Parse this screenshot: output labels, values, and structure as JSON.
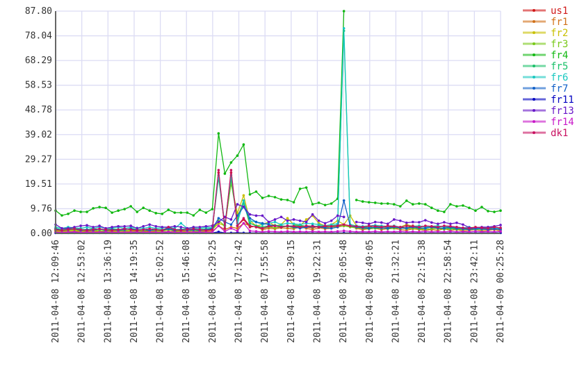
{
  "chart_data": {
    "type": "line",
    "title": "",
    "xlabel": "",
    "ylabel": "",
    "ylim": [
      0,
      87.8
    ],
    "grid": true,
    "legend_placement": "right",
    "y_tick_labels": [
      "0.00",
      "9.76",
      "19.51",
      "29.27",
      "39.02",
      "48.78",
      "58.53",
      "68.29",
      "78.04",
      "87.80"
    ],
    "x_tick_labels": [
      "2011-04-08 12:09:46",
      "2011-04-08 12:53:02",
      "2011-04-08 13:36:19",
      "2011-04-08 14:19:35",
      "2011-04-08 15:02:52",
      "2011-04-08 15:46:08",
      "2011-04-08 16:29:25",
      "2011-04-08 17:12:42",
      "2011-04-08 17:55:58",
      "2011-04-08 18:39:15",
      "2011-04-08 19:22:31",
      "2011-04-08 20:05:48",
      "2011-04-08 20:49:05",
      "2011-04-08 21:32:21",
      "2011-04-08 22:15:38",
      "2011-04-08 22:58:54",
      "2011-04-08 23:42:11",
      "2011-04-09 00:25:28"
    ],
    "series": [
      {
        "name": "us1",
        "color": "#d01818",
        "values": [
          1.2,
          0.8,
          1,
          1.5,
          1,
          0.8,
          1.2,
          1,
          0.8,
          1.2,
          1,
          0.9,
          1.3,
          1,
          0.8,
          1.1,
          1,
          0.9,
          1.5,
          0.8,
          1,
          1.2,
          0.9,
          1,
          1.1,
          1.3,
          24,
          2,
          24,
          3,
          5.5,
          2.5,
          2.8,
          2,
          2.5,
          3,
          2.6,
          2.8,
          2.4,
          3,
          2.5,
          2.2,
          2.8,
          2.5,
          3,
          3.2,
          3.5,
          3,
          2.8,
          2.2,
          2.5,
          3,
          2.6,
          2.5,
          2.8,
          2.4,
          2.2,
          3,
          2.5,
          2.8,
          2.2,
          2.5,
          2.8,
          2.2,
          2.5,
          1.8,
          2,
          2.2,
          1.8,
          2,
          2.2,
          1.8
        ]
      },
      {
        "name": "fr1",
        "color": "#d07018",
        "values": [
          0.8,
          0.5,
          0.6,
          0.8,
          0.6,
          0.5,
          0.7,
          0.6,
          0.5,
          0.7,
          0.6,
          0.5,
          0.8,
          0.6,
          0.5,
          0.7,
          0.6,
          0.5,
          0.8,
          0.5,
          0.6,
          0.7,
          0.5,
          0.6,
          0.7,
          0.8,
          3,
          1.5,
          2.5,
          2,
          4,
          3,
          2.5,
          1.5,
          2,
          1.8,
          2.2,
          2,
          1.8,
          2.5,
          2,
          1.5,
          2.2,
          1.8,
          2,
          2.5,
          3,
          2.8,
          2,
          1.5,
          1.8,
          2,
          1.5,
          1.8,
          2,
          1.5,
          1.2,
          1.8,
          1.5,
          1.2,
          1.5,
          1.2,
          1.8,
          1.2,
          1.5,
          1,
          1.2,
          1.5,
          1,
          1.2,
          1.5,
          1
        ]
      },
      {
        "name": "fr2",
        "color": "#c8c000",
        "values": [
          1,
          0.8,
          1,
          1.2,
          0.8,
          1,
          1.2,
          0.8,
          1,
          1,
          0.8,
          1.2,
          1,
          0.8,
          1,
          1.2,
          1,
          0.8,
          1.5,
          1,
          0.8,
          1.2,
          1,
          0.8,
          1.2,
          1.5,
          4,
          3,
          20,
          8,
          15,
          5,
          3,
          3.5,
          4.5,
          3,
          3.5,
          6,
          3.5,
          3,
          5.5,
          7,
          4,
          3,
          3.5,
          5,
          3.5,
          7,
          3,
          2.5,
          3,
          2.8,
          2.5,
          3,
          2.8,
          2.5,
          3.5,
          2.8,
          3,
          2.5,
          2.8,
          3,
          2.5,
          2.2,
          2.5,
          2,
          2.2,
          2.5,
          2,
          2.2,
          2.5,
          2
        ]
      },
      {
        "name": "fr3",
        "color": "#78c818",
        "values": [
          1.5,
          1,
          1.2,
          1.5,
          1.2,
          1,
          1.3,
          1.1,
          1,
          1.2,
          1.1,
          1,
          1.4,
          1.2,
          1,
          1.3,
          1.1,
          1,
          1.5,
          1,
          1.1,
          1.3,
          1,
          1.1,
          1.2,
          1.5,
          5,
          3,
          20,
          6,
          13,
          3,
          2.5,
          2,
          2.5,
          2.2,
          2.5,
          2.8,
          2.2,
          2.5,
          2.8,
          3,
          2.5,
          2.2,
          2.5,
          2.8,
          3,
          2.5,
          2.2,
          2,
          1.8,
          2,
          2.2,
          1.8,
          2,
          2.2,
          1.8,
          2,
          1.8,
          1.6,
          1.8,
          2,
          1.6,
          1.8,
          1.6,
          1.5,
          1.6,
          1.8,
          1.5,
          1.6,
          1.8,
          1.5
        ]
      },
      {
        "name": "fr4",
        "color": "#10b810",
        "values": [
          9,
          7.1,
          7.7,
          9,
          8.5,
          8.5,
          9.9,
          10.4,
          10.1,
          8.2,
          9,
          9.6,
          10.7,
          8.5,
          10.1,
          9,
          8,
          7.7,
          9.3,
          8.2,
          8.2,
          8.2,
          7.1,
          9.3,
          8.2,
          9.6,
          39.5,
          23.6,
          28,
          30.7,
          35.1,
          15.4,
          16.5,
          14,
          14.8,
          14.3,
          13.4,
          13.2,
          12.3,
          17.6,
          18.1,
          11.5,
          12.1,
          11.2,
          11.8,
          13.7,
          87.8,
          null,
          13.2,
          12.6,
          12.3,
          12.1,
          11.8,
          11.8,
          11.5,
          10.7,
          12.9,
          11.5,
          11.8,
          11.5,
          10.1,
          9,
          8.5,
          11.5,
          10.7,
          11,
          10.1,
          9,
          10.4,
          8.8,
          8.5,
          9
        ]
      },
      {
        "name": "fr5",
        "color": "#18c068",
        "values": [
          2,
          1.5,
          1.8,
          2,
          1.6,
          1.5,
          1.8,
          1.6,
          1.5,
          1.8,
          1.6,
          1.5,
          2,
          1.6,
          1.5,
          1.8,
          1.6,
          1.5,
          2,
          1.5,
          1.6,
          1.8,
          1.5,
          1.6,
          1.8,
          2,
          22,
          3,
          22,
          5,
          12,
          4,
          3,
          2.5,
          3,
          3.2,
          3,
          2.8,
          3,
          3.2,
          2.8,
          2.5,
          3,
          2.8,
          3,
          3.2,
          80,
          3,
          2.5,
          2.2,
          2.5,
          2.2,
          2,
          2.2,
          2.5,
          2,
          2.2,
          2.5,
          2,
          2.2,
          2.5,
          2,
          2.2,
          2,
          1.8,
          2,
          1.8,
          1.6,
          1.8,
          2,
          1.8,
          1.6
        ]
      },
      {
        "name": "fr6",
        "color": "#18c8c0",
        "values": [
          2.5,
          2,
          2.5,
          2.2,
          2,
          2.5,
          2,
          2.5,
          2,
          2.2,
          2.5,
          2,
          2.5,
          2.2,
          2,
          2.5,
          2,
          2.2,
          2.5,
          2,
          4,
          2,
          2.2,
          2,
          2.5,
          2.2,
          23,
          3.5,
          23,
          4,
          13,
          5,
          4.5,
          3.5,
          4,
          4.5,
          3.5,
          4,
          3.8,
          3.5,
          4,
          3.8,
          3.5,
          3,
          3.5,
          3.8,
          81,
          3.5,
          3,
          2.8,
          3,
          3.2,
          3,
          2.8,
          3,
          2.5,
          3,
          2.8,
          3,
          2.5,
          2.8,
          3,
          2.5,
          2.8,
          2.5,
          2.2,
          2.5,
          2,
          2.2,
          2.5,
          2,
          2.2
        ]
      },
      {
        "name": "fr7",
        "color": "#1060c8",
        "values": [
          1.8,
          1.2,
          1.5,
          1.8,
          1.2,
          1.5,
          1.2,
          1.8,
          1.2,
          1.5,
          1.2,
          1.5,
          1.8,
          1.2,
          1.5,
          1.2,
          1.5,
          1.2,
          1.8,
          1.2,
          1.5,
          1.2,
          1.5,
          1.2,
          1.5,
          1.8,
          6,
          4.5,
          3.5,
          7,
          10.5,
          6,
          4.5,
          4,
          3.5,
          3,
          2.5,
          3,
          2.5,
          2,
          2.5,
          3,
          2.5,
          2.2,
          2,
          2.5,
          13,
          3,
          2.5,
          2.2,
          2,
          2.5,
          2.2,
          2,
          2.5,
          2.2,
          2,
          2.5,
          2.2,
          2,
          2.5,
          2.2,
          2,
          2.5,
          2,
          1.8,
          1.5,
          2,
          1.8,
          1.5,
          1.8,
          1.5
        ]
      },
      {
        "name": "fr11",
        "color": "#0000c0",
        "values": [
          0.2,
          0.2,
          0.2,
          0.2,
          0.2,
          0.2,
          0.2,
          0.2,
          0.2,
          0.2,
          0.2,
          0.2,
          0.2,
          0.2,
          0.2,
          0.2,
          0.2,
          0.2,
          0.2,
          0.2,
          0.2,
          0.2,
          0.2,
          0.2,
          0.2,
          0.2,
          0.6,
          0.2,
          0.2,
          0.3,
          0.2,
          0.2,
          0.2,
          0.2,
          0.2,
          0.2,
          0.2,
          0.2,
          0.2,
          0.2,
          0.2,
          0.2,
          0.2,
          0.2,
          0.2,
          0.2,
          0.2,
          0.2,
          0.2,
          0.2,
          0.2,
          0.2,
          0.2,
          0.2,
          0.2,
          0.2,
          0.2,
          0.2,
          0.2,
          0.2,
          0.2,
          0.2,
          0.2,
          0.2,
          0.2,
          0.2,
          0.2,
          0.2,
          0.2,
          0.2,
          0.2,
          0.2
        ]
      },
      {
        "name": "fr13",
        "color": "#6818c8",
        "values": [
          3.5,
          2,
          2,
          2.5,
          3,
          3.2,
          2.5,
          3,
          2,
          2.5,
          2.8,
          2.8,
          3,
          2,
          2.8,
          3.5,
          2.8,
          2.5,
          2.5,
          2.8,
          2.5,
          2,
          2.5,
          2.5,
          2.8,
          3,
          4.5,
          6.5,
          5.5,
          11.5,
          10.5,
          7.5,
          7,
          7,
          4.5,
          5.5,
          6.5,
          5,
          5.5,
          5,
          4.5,
          7.5,
          5,
          4,
          5,
          7,
          6.5,
          null,
          4.5,
          4.2,
          3.8,
          4.5,
          4.3,
          3.8,
          5.5,
          5,
          4.2,
          4.5,
          4.4,
          5.2,
          4.3,
          3.8,
          4.4,
          3.8,
          4.2,
          3.5,
          2.3,
          2.3,
          2.5,
          2.5,
          2.8,
          3.3
        ]
      },
      {
        "name": "fr14",
        "color": "#c818c8",
        "values": [
          0.5,
          0.4,
          0.5,
          0.6,
          0.4,
          0.5,
          0.4,
          0.5,
          0.6,
          0.4,
          0.5,
          0.4,
          0.5,
          0.6,
          0.4,
          0.5,
          0.4,
          0.5,
          0.6,
          0.4,
          0.5,
          0.4,
          0.5,
          0.6,
          0.4,
          0.5,
          3,
          0.8,
          2,
          1,
          4,
          1,
          0.8,
          0.6,
          0.8,
          0.7,
          0.6,
          0.8,
          0.6,
          0.7,
          0.6,
          0.8,
          0.6,
          0.7,
          0.6,
          0.8,
          1,
          0.8,
          0.6,
          0.7,
          0.6,
          0.8,
          0.6,
          0.7,
          0.6,
          0.8,
          0.6,
          0.7,
          0.6,
          0.8,
          0.6,
          0.7,
          0.6,
          0.8,
          0.6,
          0.7,
          0.6,
          0.8,
          0.6,
          0.7,
          0.6,
          0.8
        ]
      },
      {
        "name": "dk1",
        "color": "#c81060",
        "values": [
          1.5,
          1.2,
          1.5,
          1.8,
          1.5,
          1.2,
          1.5,
          1.8,
          1.5,
          1.2,
          1.5,
          1.8,
          1.5,
          1.2,
          1.5,
          1.8,
          1.5,
          1.2,
          2.5,
          1.5,
          1.2,
          1.5,
          1.8,
          1.5,
          1.2,
          1.5,
          25,
          2,
          25,
          3,
          6,
          3,
          2.5,
          2,
          2.8,
          3,
          2.5,
          3,
          2.8,
          2.5,
          3,
          2.8,
          2.5,
          3,
          2.8,
          3,
          3.5,
          3,
          2.8,
          2.5,
          3,
          2.8,
          2.5,
          3,
          2.8,
          2.5,
          3,
          2.8,
          2.5,
          3,
          2.8,
          2.5,
          3,
          2.8,
          2.5,
          2.2,
          2,
          2.5,
          2.2,
          2,
          2.5,
          2.2
        ]
      }
    ]
  }
}
